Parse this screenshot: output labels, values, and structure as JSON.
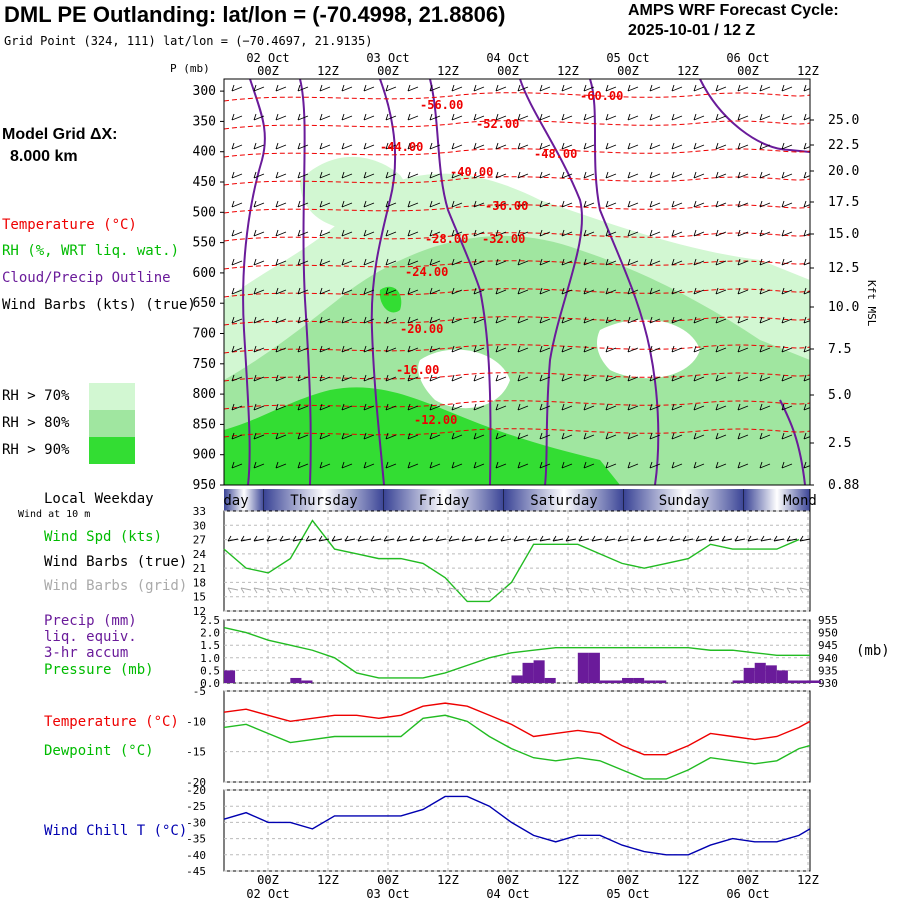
{
  "header": {
    "title": "DML PE Outlanding:  lat/lon = (-70.4998, 21.8806)",
    "grid_point": "Grid Point (324, 111) lat/lon = (−70.4697, 21.9135)",
    "forecast_label": "AMPS WRF Forecast Cycle:",
    "cycle": "2025-10-01 / 12  Z"
  },
  "model_grid": {
    "label": "Model Grid ΔX:",
    "value": "8.000 km"
  },
  "legend": {
    "temperature": "Temperature (°C)",
    "rh": "RH (%, WRT liq. wat.)",
    "cloud": "Cloud/Precip Outline",
    "wind": "Wind Barbs (kts) (true)",
    "rh70": "RH > 70%",
    "rh80": "RH > 80%",
    "rh90": "RH > 90%"
  },
  "colors": {
    "rh70": "#d2f7d2",
    "rh80": "#a0e6a0",
    "rh90": "#33dd33",
    "temperature": "#ee0000",
    "cloud": "#6a1b9a",
    "wind_speed": "#22bb22",
    "pressure": "#22bb22",
    "precip": "#6a1b9a",
    "dewpoint": "#22bb22",
    "wind_chill": "#0000b0",
    "day_band": "#404a9a"
  },
  "time_axis": {
    "top_dates": [
      "02 Oct",
      "03 Oct",
      "04 Oct",
      "05 Oct",
      "06 Oct"
    ],
    "hours": [
      "00Z",
      "12Z",
      "00Z",
      "12Z",
      "00Z",
      "12Z",
      "00Z",
      "12Z",
      "00Z",
      "12Z"
    ],
    "bottom_dates": [
      "02 Oct",
      "03 Oct",
      "04 Oct",
      "05 Oct",
      "06 Oct"
    ]
  },
  "weekday": {
    "label": "Local Weekday",
    "sublabel": "Wind at 10 m",
    "days": [
      "day",
      "Thursday",
      "Friday",
      "Saturday",
      "Sunday",
      "Mond"
    ]
  },
  "panel_labels": {
    "p_axis": "P (mb)",
    "kft": "Kft MSL",
    "wind_spd": "Wind Spd (kts)",
    "wind_true": "Wind Barbs (true)",
    "wind_grid": "Wind Barbs (grid)",
    "precip1": "Precip (mm)",
    "precip2": "liq. equiv.",
    "precip3": "3-hr accum",
    "pressure": "Pressure (mb)",
    "pressure_unit": "(mb)",
    "temperature": "Temperature (°C)",
    "dewpoint": "Dewpoint (°C)",
    "wind_chill": "Wind Chill T (°C)"
  },
  "chart_data": [
    {
      "type": "heatmap",
      "name_hidden": "cross-section",
      "pressure_ticks": [
        300,
        350,
        400,
        450,
        500,
        550,
        600,
        650,
        700,
        750,
        800,
        850,
        900,
        950
      ],
      "height_ticks": [
        "25.0",
        "22.5",
        "20.0",
        "17.5",
        "15.0",
        "12.5",
        "10.0",
        "7.5",
        "5.0",
        "2.5",
        "0.88"
      ],
      "temperature_contour_labels": [
        "-56.00",
        "-60.00",
        "-52.00",
        "-44.00",
        "-48.00",
        "-40.00",
        "-36.00",
        "-28.00",
        "-32.00",
        "-24.00",
        "-20.00",
        "-16.00",
        "-12.00"
      ],
      "ylim": [
        950,
        280
      ]
    },
    {
      "type": "line",
      "name_hidden": "wind-speed",
      "yticks": [
        12,
        15,
        18,
        21,
        24,
        27,
        30,
        33
      ],
      "ylim": [
        12,
        33
      ],
      "hours": [
        0,
        6,
        12,
        18,
        24,
        30,
        36,
        42,
        48,
        54,
        60,
        66,
        72,
        78,
        84,
        90,
        96,
        102,
        108,
        114,
        120,
        126,
        132,
        138,
        144,
        150,
        156
      ],
      "values": [
        25,
        21,
        20,
        23,
        31,
        25,
        24,
        23,
        23,
        22,
        19,
        14,
        14,
        18,
        26,
        26,
        26,
        24,
        22,
        21,
        22,
        23,
        26,
        25,
        25,
        25,
        27
      ]
    },
    {
      "type": "bar",
      "name_hidden": "precip-pressure",
      "precip_yticks": [
        "0.0",
        "0.5",
        "1.0",
        "1.5",
        "2.0",
        "2.5"
      ],
      "precip_ylim": [
        0,
        2.5
      ],
      "pressure_yticks": [
        930,
        935,
        940,
        945,
        950,
        955
      ],
      "pressure_ylim": [
        930,
        955
      ],
      "precip_hours": [
        0,
        3,
        6,
        9,
        12,
        15,
        18,
        21,
        24,
        27,
        30,
        33,
        36,
        39,
        42,
        45,
        48,
        51,
        54,
        57,
        60,
        63,
        66,
        69,
        72,
        75,
        78,
        81,
        84,
        87,
        90,
        93,
        96,
        99,
        102,
        105,
        108,
        111,
        114,
        117,
        120,
        123,
        126,
        129,
        132,
        135,
        138,
        141,
        144,
        147,
        150,
        153,
        156,
        159
      ],
      "precip": [
        0.5,
        0,
        0,
        0,
        0,
        0,
        0.2,
        0.1,
        0,
        0,
        0,
        0,
        0,
        0,
        0,
        0,
        0,
        0,
        0,
        0,
        0,
        0,
        0,
        0,
        0,
        0,
        0.3,
        0.8,
        0.9,
        0.2,
        0,
        0,
        1.2,
        1.2,
        0.1,
        0.1,
        0.2,
        0.2,
        0.1,
        0.1,
        0,
        0,
        0,
        0,
        0,
        0,
        0.1,
        0.6,
        0.8,
        0.7,
        0.5,
        0.1,
        0.1,
        0.1
      ],
      "pressure_hours": [
        0,
        6,
        12,
        18,
        24,
        30,
        36,
        42,
        48,
        54,
        60,
        66,
        72,
        78,
        84,
        90,
        96,
        102,
        108,
        114,
        120,
        126,
        132,
        138,
        144,
        150,
        156,
        159
      ],
      "pressure": [
        952,
        950,
        947,
        945,
        943,
        940,
        934,
        932,
        932,
        932,
        934,
        937,
        940,
        942,
        943,
        944,
        944,
        944,
        944,
        944,
        944,
        944,
        943,
        943,
        942,
        941,
        941,
        941
      ]
    },
    {
      "type": "line",
      "name_hidden": "temperature-dewpoint",
      "yticks": [
        -20,
        -15,
        -10,
        -5
      ],
      "ylim": [
        -20,
        -5
      ],
      "hours": [
        0,
        6,
        12,
        18,
        24,
        30,
        36,
        42,
        48,
        54,
        60,
        66,
        72,
        78,
        84,
        90,
        96,
        102,
        108,
        114,
        120,
        126,
        132,
        138,
        144,
        150,
        156,
        159
      ],
      "series": [
        {
          "name": "Temperature",
          "values": [
            -8.5,
            -8,
            -9,
            -10,
            -9.5,
            -9,
            -9,
            -9.5,
            -9,
            -7.5,
            -7,
            -7.5,
            -9,
            -10.5,
            -12.5,
            -12,
            -11.5,
            -12,
            -14,
            -15.5,
            -15.5,
            -14,
            -12,
            -12.5,
            -13,
            -12.5,
            -11,
            -10
          ]
        },
        {
          "name": "Dewpoint",
          "values": [
            -11,
            -10.5,
            -12,
            -13.5,
            -13,
            -12.5,
            -12.5,
            -12.5,
            -12.5,
            -9.5,
            -9,
            -10,
            -12.5,
            -14.5,
            -16,
            -16.5,
            -16,
            -16.5,
            -18,
            -19.5,
            -19.5,
            -18,
            -16,
            -16.5,
            -17,
            -16.5,
            -14.5,
            -14
          ]
        }
      ]
    },
    {
      "type": "line",
      "name_hidden": "wind-chill",
      "yticks": [
        -45,
        -40,
        -35,
        -30,
        -25,
        -20
      ],
      "ylim": [
        -45,
        -20
      ],
      "hours": [
        0,
        6,
        12,
        18,
        24,
        30,
        36,
        42,
        48,
        54,
        60,
        66,
        72,
        78,
        84,
        90,
        96,
        102,
        108,
        114,
        120,
        126,
        132,
        138,
        144,
        150,
        156,
        159
      ],
      "values": [
        -29,
        -27,
        -30,
        -30,
        -32,
        -28,
        -28,
        -28,
        -28,
        -26,
        -22,
        -22,
        -25,
        -30,
        -34,
        -36,
        -34,
        -34,
        -37,
        -39,
        -40,
        -40,
        -37,
        -35,
        -36,
        -36,
        -34,
        -32
      ]
    }
  ]
}
